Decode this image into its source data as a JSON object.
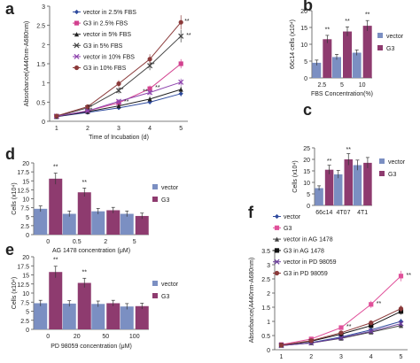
{
  "chart_data": [
    {
      "panel": "a",
      "type": "line",
      "xlabel": "Time of Incubation (d)",
      "ylabel": "Absorbance(A440nm-A680nm)",
      "x": [
        1,
        2,
        3,
        4,
        5
      ],
      "ylim": [
        0,
        3
      ],
      "yticks": [
        0,
        0.5,
        1,
        1.5,
        2,
        2.5,
        3
      ],
      "series": [
        {
          "name": "vector in 2.5% FBS",
          "color": "#2f4b9e",
          "marker": "diamond",
          "values": [
            0.12,
            0.23,
            0.35,
            0.5,
            0.72
          ]
        },
        {
          "name": "G3 in 2.5% FBS",
          "color": "#d2418f",
          "marker": "square",
          "values": [
            0.13,
            0.27,
            0.48,
            0.85,
            1.5
          ]
        },
        {
          "name": "vector in 5% FBS",
          "color": "#222222",
          "marker": "triangle",
          "values": [
            0.12,
            0.25,
            0.4,
            0.58,
            0.83
          ]
        },
        {
          "name": "G3 in 5% FBS",
          "color": "#444444",
          "marker": "x",
          "values": [
            0.13,
            0.35,
            0.8,
            1.45,
            2.22
          ]
        },
        {
          "name": "vector in 10% FBS",
          "color": "#8e44ad",
          "marker": "x",
          "values": [
            0.13,
            0.27,
            0.52,
            0.75,
            1.02
          ]
        },
        {
          "name": "G3 in 10% FBS",
          "color": "#8b3a3a",
          "marker": "circle",
          "values": [
            0.14,
            0.38,
            0.98,
            1.62,
            2.58
          ]
        }
      ],
      "annotations": [
        "**",
        "**",
        "**",
        "**",
        "**",
        "**",
        "**",
        "**",
        "**"
      ]
    },
    {
      "panel": "b",
      "type": "bar",
      "ylabel": "66c14 cells (x10⁴)",
      "xlabel": "FBS Concentration(%)",
      "categories": [
        "2.5",
        "5",
        "10"
      ],
      "ylim": [
        0,
        20
      ],
      "yticks": [
        0,
        5,
        10,
        15,
        20
      ],
      "series": [
        {
          "name": "vector",
          "color": "#7b8fc2",
          "values": [
            4.5,
            6.2,
            7.5
          ]
        },
        {
          "name": "G3",
          "color": "#8e3b6f",
          "values": [
            11.5,
            13.8,
            15.5
          ]
        }
      ],
      "annotations": [
        "**",
        "**",
        "**"
      ]
    },
    {
      "panel": "c",
      "type": "bar",
      "ylabel": "Cells (x10⁴)",
      "categories": [
        "66c14",
        "4T07",
        "4T1"
      ],
      "ylim": [
        0,
        25
      ],
      "yticks": [
        0,
        5,
        10,
        15,
        20,
        25
      ],
      "series": [
        {
          "name": "vector",
          "color": "#7b8fc2",
          "values": [
            7.5,
            13.5,
            17.5
          ]
        },
        {
          "name": "G3",
          "color": "#8e3b6f",
          "values": [
            15.5,
            20,
            18.5
          ]
        }
      ],
      "annotations": [
        "**",
        "**"
      ]
    },
    {
      "panel": "d",
      "type": "bar",
      "ylabel": "Cells (x10⁴)",
      "xlabel": "AG 1478 concentration (μM)",
      "categories": [
        "0",
        "0.5",
        "2",
        "5"
      ],
      "ylim": [
        0,
        20
      ],
      "yticks": [
        0,
        2.5,
        5,
        7.5,
        10,
        12.5,
        15,
        17.5,
        20
      ],
      "series": [
        {
          "name": "vector",
          "color": "#7b8fc2",
          "values": [
            7.2,
            5.8,
            6.5,
            5.8
          ]
        },
        {
          "name": "G3",
          "color": "#8e3b6f",
          "values": [
            15.6,
            11.8,
            6.8,
            5.2
          ]
        }
      ],
      "annotations": [
        "**",
        "**"
      ]
    },
    {
      "panel": "e",
      "type": "bar",
      "ylabel": "Cells (x10⁴)",
      "xlabel": "PD 98059 concentration (μM)",
      "categories": [
        "0",
        "20",
        "50",
        "100"
      ],
      "ylim": [
        0,
        20
      ],
      "yticks": [
        0,
        2.5,
        5,
        7.5,
        10,
        12.5,
        15,
        17.5,
        20
      ],
      "series": [
        {
          "name": "vector",
          "color": "#7b8fc2",
          "values": [
            7.2,
            7.1,
            7.0,
            6.3
          ]
        },
        {
          "name": "G3",
          "color": "#8e3b6f",
          "values": [
            15.8,
            12.8,
            7.2,
            6.4
          ]
        }
      ],
      "annotations": [
        "**",
        "**"
      ]
    },
    {
      "panel": "f",
      "type": "line",
      "xlabel": "Time of Incubation (d)",
      "ylabel": "Absorbance(A440nm-A680nm)",
      "x": [
        1,
        2,
        3,
        4,
        5
      ],
      "ylim": [
        0,
        3.5
      ],
      "yticks": [
        0,
        0.5,
        1,
        1.5,
        2,
        2.5,
        3,
        3.5
      ],
      "series": [
        {
          "name": "vector",
          "color": "#2f4b9e",
          "marker": "diamond",
          "values": [
            0.15,
            0.25,
            0.45,
            0.7,
            1.0
          ]
        },
        {
          "name": "G3",
          "color": "#e0509a",
          "marker": "square",
          "values": [
            0.18,
            0.38,
            0.78,
            1.6,
            2.6
          ]
        },
        {
          "name": "vector in AG 1478",
          "color": "#444444",
          "marker": "triangle",
          "values": [
            0.15,
            0.24,
            0.4,
            0.62,
            0.85
          ]
        },
        {
          "name": "G3 in AG 1478",
          "color": "#111111",
          "marker": "square",
          "values": [
            0.16,
            0.3,
            0.55,
            0.85,
            1.35
          ]
        },
        {
          "name": "vector in PD 98059",
          "color": "#6a3d9a",
          "marker": "x",
          "values": [
            0.15,
            0.24,
            0.42,
            0.65,
            0.92
          ]
        },
        {
          "name": "G3 in PD 98059",
          "color": "#8b3a3a",
          "marker": "circle",
          "values": [
            0.16,
            0.32,
            0.6,
            0.95,
            1.45
          ]
        }
      ],
      "annotations": [
        "**",
        "**",
        "**"
      ]
    }
  ]
}
